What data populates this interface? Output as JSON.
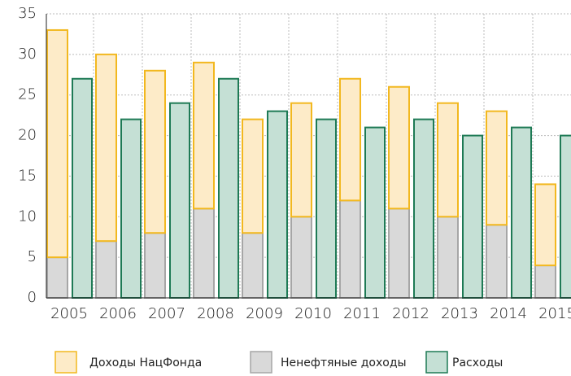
{
  "chart_data": {
    "type": "bar",
    "categories": [
      "2005",
      "2006",
      "2007",
      "2008",
      "2009",
      "2010",
      "2011",
      "2012",
      "2013",
      "2014",
      "2015"
    ],
    "series": [
      {
        "name": "Доходы НацФонда",
        "color": "#f2b81f",
        "fill": "#fdebc8",
        "values": [
          28,
          23,
          20,
          18,
          14,
          14,
          15,
          15,
          14,
          14,
          10
        ]
      },
      {
        "name": "Ненефтяные доходы",
        "color": "#a6a6a6",
        "fill": "#d9d9d9",
        "values": [
          5,
          7,
          8,
          11,
          8,
          10,
          12,
          11,
          10,
          9,
          4
        ]
      },
      {
        "name": "Расходы",
        "color": "#1e7a55",
        "fill": "#c5e0d5",
        "values": [
          27,
          22,
          24,
          27,
          23,
          22,
          21,
          22,
          20,
          21,
          20
        ]
      }
    ],
    "ylim": [
      0,
      35
    ],
    "yticks": [
      0,
      5,
      10,
      15,
      20,
      25,
      30,
      35
    ],
    "grid": true,
    "legend": "bottom"
  }
}
